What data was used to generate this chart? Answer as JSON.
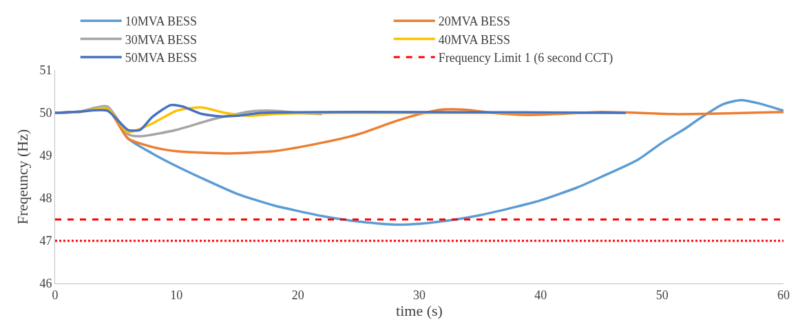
{
  "chart_data": {
    "type": "line",
    "xlabel": "time (s)",
    "ylabel": "Freqeuncy (Hz)",
    "xlim": [
      0,
      60
    ],
    "xticks": [
      0,
      10,
      20,
      30,
      40,
      50,
      60
    ],
    "ylim": [
      46,
      51
    ],
    "yticks": [
      46,
      47,
      48,
      49,
      50,
      51
    ],
    "grid": false,
    "legend": "top",
    "marker": "none",
    "series": [
      {
        "name": "10MVA BESS",
        "color": "#5b9bd5",
        "line_style": "solid",
        "x": [
          0,
          2,
          4.3,
          6,
          8,
          10,
          12,
          15,
          18,
          20,
          22,
          25,
          28,
          30,
          33,
          35,
          38,
          40,
          43,
          45,
          48,
          50,
          52,
          53,
          55,
          56.5,
          58,
          60
        ],
        "values": [
          50,
          50.02,
          50.1,
          49.4,
          49.05,
          48.75,
          48.48,
          48.1,
          47.83,
          47.7,
          47.58,
          47.45,
          47.38,
          47.4,
          47.5,
          47.6,
          47.8,
          47.95,
          48.25,
          48.5,
          48.9,
          49.3,
          49.65,
          49.85,
          50.2,
          50.3,
          50.22,
          50.05
        ]
      },
      {
        "name": "20MVA BESS",
        "color": "#ed7d31",
        "line_style": "solid",
        "x": [
          0,
          2,
          4.3,
          6,
          8,
          10,
          14,
          18,
          22,
          25,
          28,
          30,
          32,
          34,
          36,
          39,
          42,
          45,
          48,
          51,
          54,
          57,
          60
        ],
        "values": [
          50,
          50.02,
          50.1,
          49.4,
          49.2,
          49.1,
          49.05,
          49.1,
          49.3,
          49.5,
          49.8,
          49.97,
          50.08,
          50.07,
          50.0,
          49.95,
          49.98,
          50.02,
          50.0,
          49.97,
          49.98,
          50.0,
          50.02
        ]
      },
      {
        "name": "30MVA BESS",
        "color": "#a5a5a5",
        "line_style": "solid",
        "x": [
          0,
          2,
          4.3,
          6,
          7,
          10,
          13,
          16,
          18,
          20,
          22
        ],
        "values": [
          50,
          50.03,
          50.15,
          49.5,
          49.45,
          49.6,
          49.85,
          50.03,
          50.05,
          50.0,
          49.97
        ]
      },
      {
        "name": "40MVA BESS",
        "color": "#ffc000",
        "line_style": "solid",
        "x": [
          0,
          2,
          4.3,
          6,
          8,
          10,
          12,
          14,
          16,
          18,
          23,
          47
        ],
        "values": [
          50,
          50.02,
          50.1,
          49.55,
          49.75,
          50.05,
          50.13,
          50.0,
          49.93,
          49.97,
          50.0,
          50.0
        ]
      },
      {
        "name": "50MVA BESS",
        "color": "#4472c4",
        "line_style": "solid",
        "x": [
          0,
          2,
          4.3,
          6,
          7,
          8,
          9.5,
          10.5,
          12,
          13.5,
          15,
          17,
          47
        ],
        "values": [
          50,
          50.03,
          50.05,
          49.6,
          49.6,
          49.9,
          50.18,
          50.15,
          49.98,
          49.92,
          49.93,
          50.0,
          50.0
        ]
      },
      {
        "name": "Frequency Limit 1 (6 second CCT)",
        "color": "#ff0000",
        "line_style": "dashed",
        "x": [
          0,
          60
        ],
        "values": [
          47.5,
          47.5
        ]
      },
      {
        "color": "#ff0000",
        "line_style": "dotted",
        "x": [
          0,
          60
        ],
        "values": [
          47,
          47
        ]
      }
    ]
  }
}
